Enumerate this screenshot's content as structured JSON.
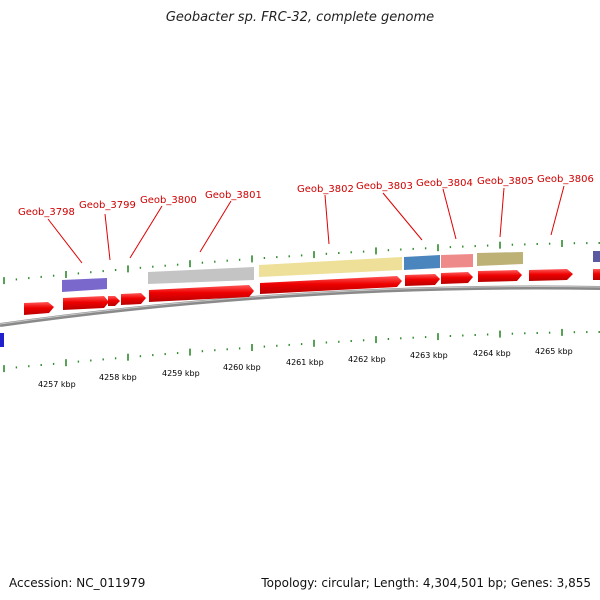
{
  "title": "Geobacter sp. FRC-32, complete genome",
  "footer": {
    "accession": "Accession: NC_011979",
    "summary": "Topology: circular; Length: 4,304,501 bp; Genes: 3,855"
  },
  "colors": {
    "forward_gene": "#ee0000",
    "label": "#d00000",
    "tick": "#2e8b2e",
    "backbone": "#8a8a8a",
    "edge_marker": "#2020cc"
  },
  "scale_labels": [
    "4257 kbp",
    "4258 kbp",
    "4259 kbp",
    "4260 kbp",
    "4261 kbp",
    "4262 kbp",
    "4263 kbp",
    "4264 kbp",
    "4265 kbp"
  ],
  "gene_labels": [
    "Geob_3798",
    "Geob_3799",
    "Geob_3800",
    "Geob_3801",
    "Geob_3802",
    "Geob_3803",
    "Geob_3804",
    "Geob_3805",
    "Geob_3806"
  ],
  "cog_blocks": [
    {
      "color": "#7b68cc"
    },
    {
      "color": "#c4c4c4"
    },
    {
      "color": "#eee098"
    },
    {
      "color": "#4a86bd"
    },
    {
      "color": "#ef8a8a"
    },
    {
      "color": "#bdb175"
    },
    {
      "color": "#5a5aa0"
    }
  ]
}
